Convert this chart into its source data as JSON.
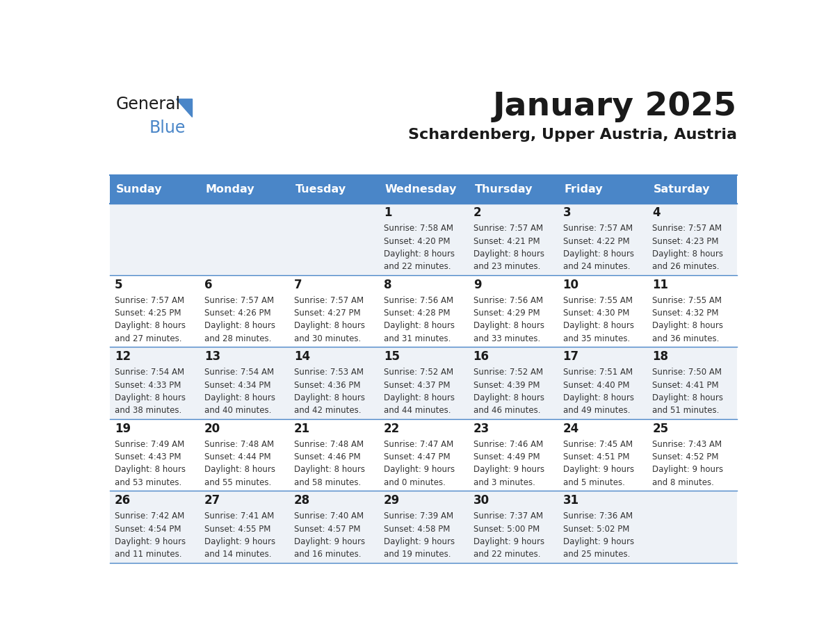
{
  "title": "January 2025",
  "subtitle": "Schardenberg, Upper Austria, Austria",
  "header_bg_color": "#4a86c8",
  "header_text_color": "#ffffff",
  "row_bg_even": "#eef2f7",
  "row_bg_odd": "#ffffff",
  "cell_text_color": "#333333",
  "day_number_color": "#1a1a1a",
  "grid_line_color": "#4a86c8",
  "days_of_week": [
    "Sunday",
    "Monday",
    "Tuesday",
    "Wednesday",
    "Thursday",
    "Friday",
    "Saturday"
  ],
  "calendar_data": [
    [
      {
        "day": "",
        "sunrise": "",
        "sunset": "",
        "daylight_line1": "",
        "daylight_line2": ""
      },
      {
        "day": "",
        "sunrise": "",
        "sunset": "",
        "daylight_line1": "",
        "daylight_line2": ""
      },
      {
        "day": "",
        "sunrise": "",
        "sunset": "",
        "daylight_line1": "",
        "daylight_line2": ""
      },
      {
        "day": "1",
        "sunrise": "7:58 AM",
        "sunset": "4:20 PM",
        "daylight_line1": "8 hours",
        "daylight_line2": "and 22 minutes."
      },
      {
        "day": "2",
        "sunrise": "7:57 AM",
        "sunset": "4:21 PM",
        "daylight_line1": "8 hours",
        "daylight_line2": "and 23 minutes."
      },
      {
        "day": "3",
        "sunrise": "7:57 AM",
        "sunset": "4:22 PM",
        "daylight_line1": "8 hours",
        "daylight_line2": "and 24 minutes."
      },
      {
        "day": "4",
        "sunrise": "7:57 AM",
        "sunset": "4:23 PM",
        "daylight_line1": "8 hours",
        "daylight_line2": "and 26 minutes."
      }
    ],
    [
      {
        "day": "5",
        "sunrise": "7:57 AM",
        "sunset": "4:25 PM",
        "daylight_line1": "8 hours",
        "daylight_line2": "and 27 minutes."
      },
      {
        "day": "6",
        "sunrise": "7:57 AM",
        "sunset": "4:26 PM",
        "daylight_line1": "8 hours",
        "daylight_line2": "and 28 minutes."
      },
      {
        "day": "7",
        "sunrise": "7:57 AM",
        "sunset": "4:27 PM",
        "daylight_line1": "8 hours",
        "daylight_line2": "and 30 minutes."
      },
      {
        "day": "8",
        "sunrise": "7:56 AM",
        "sunset": "4:28 PM",
        "daylight_line1": "8 hours",
        "daylight_line2": "and 31 minutes."
      },
      {
        "day": "9",
        "sunrise": "7:56 AM",
        "sunset": "4:29 PM",
        "daylight_line1": "8 hours",
        "daylight_line2": "and 33 minutes."
      },
      {
        "day": "10",
        "sunrise": "7:55 AM",
        "sunset": "4:30 PM",
        "daylight_line1": "8 hours",
        "daylight_line2": "and 35 minutes."
      },
      {
        "day": "11",
        "sunrise": "7:55 AM",
        "sunset": "4:32 PM",
        "daylight_line1": "8 hours",
        "daylight_line2": "and 36 minutes."
      }
    ],
    [
      {
        "day": "12",
        "sunrise": "7:54 AM",
        "sunset": "4:33 PM",
        "daylight_line1": "8 hours",
        "daylight_line2": "and 38 minutes."
      },
      {
        "day": "13",
        "sunrise": "7:54 AM",
        "sunset": "4:34 PM",
        "daylight_line1": "8 hours",
        "daylight_line2": "and 40 minutes."
      },
      {
        "day": "14",
        "sunrise": "7:53 AM",
        "sunset": "4:36 PM",
        "daylight_line1": "8 hours",
        "daylight_line2": "and 42 minutes."
      },
      {
        "day": "15",
        "sunrise": "7:52 AM",
        "sunset": "4:37 PM",
        "daylight_line1": "8 hours",
        "daylight_line2": "and 44 minutes."
      },
      {
        "day": "16",
        "sunrise": "7:52 AM",
        "sunset": "4:39 PM",
        "daylight_line1": "8 hours",
        "daylight_line2": "and 46 minutes."
      },
      {
        "day": "17",
        "sunrise": "7:51 AM",
        "sunset": "4:40 PM",
        "daylight_line1": "8 hours",
        "daylight_line2": "and 49 minutes."
      },
      {
        "day": "18",
        "sunrise": "7:50 AM",
        "sunset": "4:41 PM",
        "daylight_line1": "8 hours",
        "daylight_line2": "and 51 minutes."
      }
    ],
    [
      {
        "day": "19",
        "sunrise": "7:49 AM",
        "sunset": "4:43 PM",
        "daylight_line1": "8 hours",
        "daylight_line2": "and 53 minutes."
      },
      {
        "day": "20",
        "sunrise": "7:48 AM",
        "sunset": "4:44 PM",
        "daylight_line1": "8 hours",
        "daylight_line2": "and 55 minutes."
      },
      {
        "day": "21",
        "sunrise": "7:48 AM",
        "sunset": "4:46 PM",
        "daylight_line1": "8 hours",
        "daylight_line2": "and 58 minutes."
      },
      {
        "day": "22",
        "sunrise": "7:47 AM",
        "sunset": "4:47 PM",
        "daylight_line1": "9 hours",
        "daylight_line2": "and 0 minutes."
      },
      {
        "day": "23",
        "sunrise": "7:46 AM",
        "sunset": "4:49 PM",
        "daylight_line1": "9 hours",
        "daylight_line2": "and 3 minutes."
      },
      {
        "day": "24",
        "sunrise": "7:45 AM",
        "sunset": "4:51 PM",
        "daylight_line1": "9 hours",
        "daylight_line2": "and 5 minutes."
      },
      {
        "day": "25",
        "sunrise": "7:43 AM",
        "sunset": "4:52 PM",
        "daylight_line1": "9 hours",
        "daylight_line2": "and 8 minutes."
      }
    ],
    [
      {
        "day": "26",
        "sunrise": "7:42 AM",
        "sunset": "4:54 PM",
        "daylight_line1": "9 hours",
        "daylight_line2": "and 11 minutes."
      },
      {
        "day": "27",
        "sunrise": "7:41 AM",
        "sunset": "4:55 PM",
        "daylight_line1": "9 hours",
        "daylight_line2": "and 14 minutes."
      },
      {
        "day": "28",
        "sunrise": "7:40 AM",
        "sunset": "4:57 PM",
        "daylight_line1": "9 hours",
        "daylight_line2": "and 16 minutes."
      },
      {
        "day": "29",
        "sunrise": "7:39 AM",
        "sunset": "4:58 PM",
        "daylight_line1": "9 hours",
        "daylight_line2": "and 19 minutes."
      },
      {
        "day": "30",
        "sunrise": "7:37 AM",
        "sunset": "5:00 PM",
        "daylight_line1": "9 hours",
        "daylight_line2": "and 22 minutes."
      },
      {
        "day": "31",
        "sunrise": "7:36 AM",
        "sunset": "5:02 PM",
        "daylight_line1": "9 hours",
        "daylight_line2": "and 25 minutes."
      },
      {
        "day": "",
        "sunrise": "",
        "sunset": "",
        "daylight_line1": "",
        "daylight_line2": ""
      }
    ]
  ],
  "logo_general_color": "#1a1a1a",
  "logo_blue_color": "#4a86c8",
  "title_fontsize": 34,
  "subtitle_fontsize": 16,
  "header_fontsize": 11.5,
  "day_number_fontsize": 12,
  "cell_fontsize": 8.5
}
